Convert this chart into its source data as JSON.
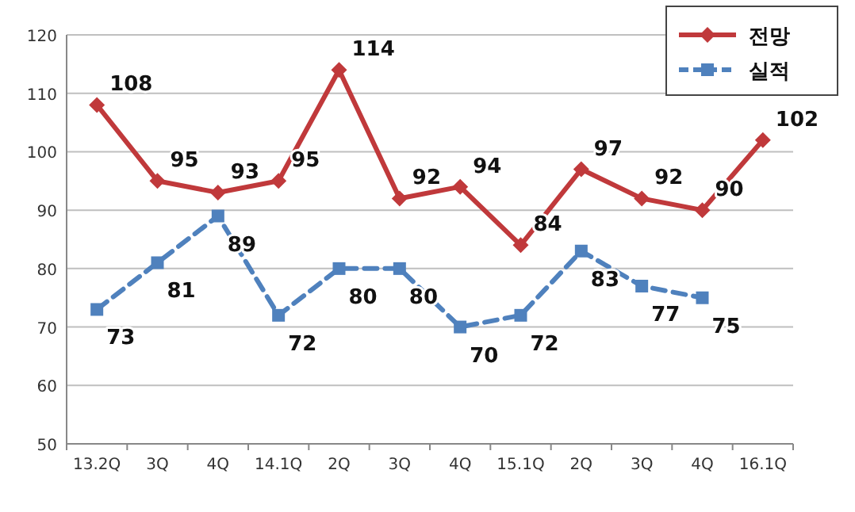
{
  "chart_data": {
    "type": "line",
    "categories": [
      "13.2Q",
      "3Q",
      "4Q",
      "14.1Q",
      "2Q",
      "3Q",
      "4Q",
      "15.1Q",
      "2Q",
      "3Q",
      "4Q",
      "16.1Q"
    ],
    "series": [
      {
        "name": "전망",
        "color": "#c0393b",
        "values": [
          108,
          95,
          93,
          95,
          114,
          92,
          94,
          84,
          97,
          92,
          90,
          102
        ],
        "marker": "diamond",
        "line_style": "solid"
      },
      {
        "name": "실적",
        "color": "#4f81bd",
        "values": [
          73,
          81,
          89,
          72,
          80,
          80,
          70,
          72,
          83,
          77,
          75,
          null
        ],
        "marker": "square",
        "line_style": "dashed"
      }
    ],
    "ylim": [
      50,
      120
    ],
    "yticks": [
      50,
      60,
      70,
      80,
      90,
      100,
      110,
      120
    ],
    "grid": "y",
    "legend": "top right",
    "data_labels": true
  }
}
